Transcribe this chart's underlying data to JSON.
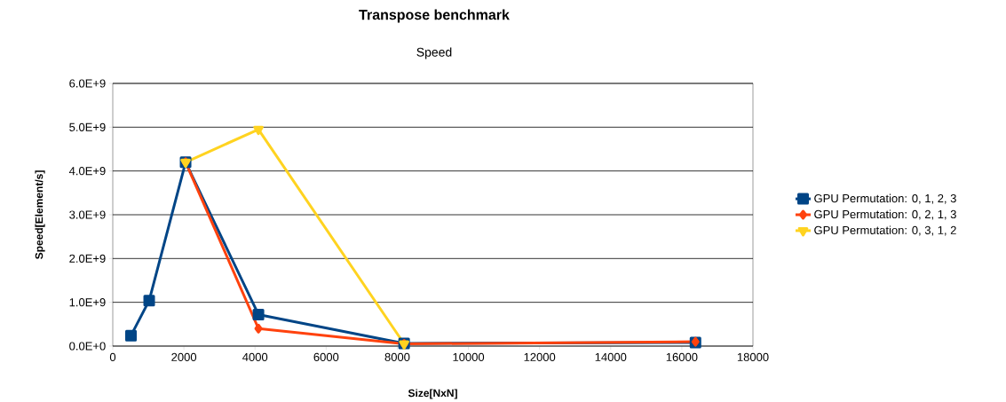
{
  "chart_data": {
    "type": "line",
    "title": "Transpose benchmark",
    "subtitle": "Speed",
    "xlabel": "Size[NxN]",
    "ylabel": "Speed[Element/s]",
    "x": [
      512,
      1024,
      2048,
      4096,
      8192,
      16384
    ],
    "series": [
      {
        "name": "GPU Permutation: 0, 1, 2, 3",
        "color": "#004586",
        "marker": "square",
        "values": [
          240000000.0,
          1040000000.0,
          4200000000.0,
          720000000.0,
          60000000.0,
          80000000.0
        ]
      },
      {
        "name": "GPU Permutation: 0, 2, 1, 3",
        "color": "#ff420e",
        "marker": "diamond",
        "values": [
          null,
          null,
          4200000000.0,
          400000000.0,
          50000000.0,
          100000000.0
        ]
      },
      {
        "name": "GPU Permutation: 0, 3, 1, 2",
        "color": "#ffd320",
        "marker": "triangle",
        "values": [
          null,
          null,
          4200000000.0,
          4950000000.0,
          50000000.0,
          null
        ]
      }
    ],
    "xlim": [
      0,
      18000
    ],
    "xticks": [
      0,
      2000,
      4000,
      6000,
      8000,
      10000,
      12000,
      14000,
      16000,
      18000
    ],
    "ylim": [
      0,
      6000000000.0
    ],
    "yticks": [
      {
        "value": 0,
        "label": "0.0E+0"
      },
      {
        "value": 1000000000.0,
        "label": "1.0E+9"
      },
      {
        "value": 2000000000.0,
        "label": "2.0E+9"
      },
      {
        "value": 3000000000.0,
        "label": "3.0E+9"
      },
      {
        "value": 4000000000.0,
        "label": "4.0E+9"
      },
      {
        "value": 5000000000.0,
        "label": "5.0E+9"
      },
      {
        "value": 6000000000.0,
        "label": "6.0E+9"
      }
    ],
    "grid": "y",
    "legend": "right",
    "line_style": "solid"
  }
}
